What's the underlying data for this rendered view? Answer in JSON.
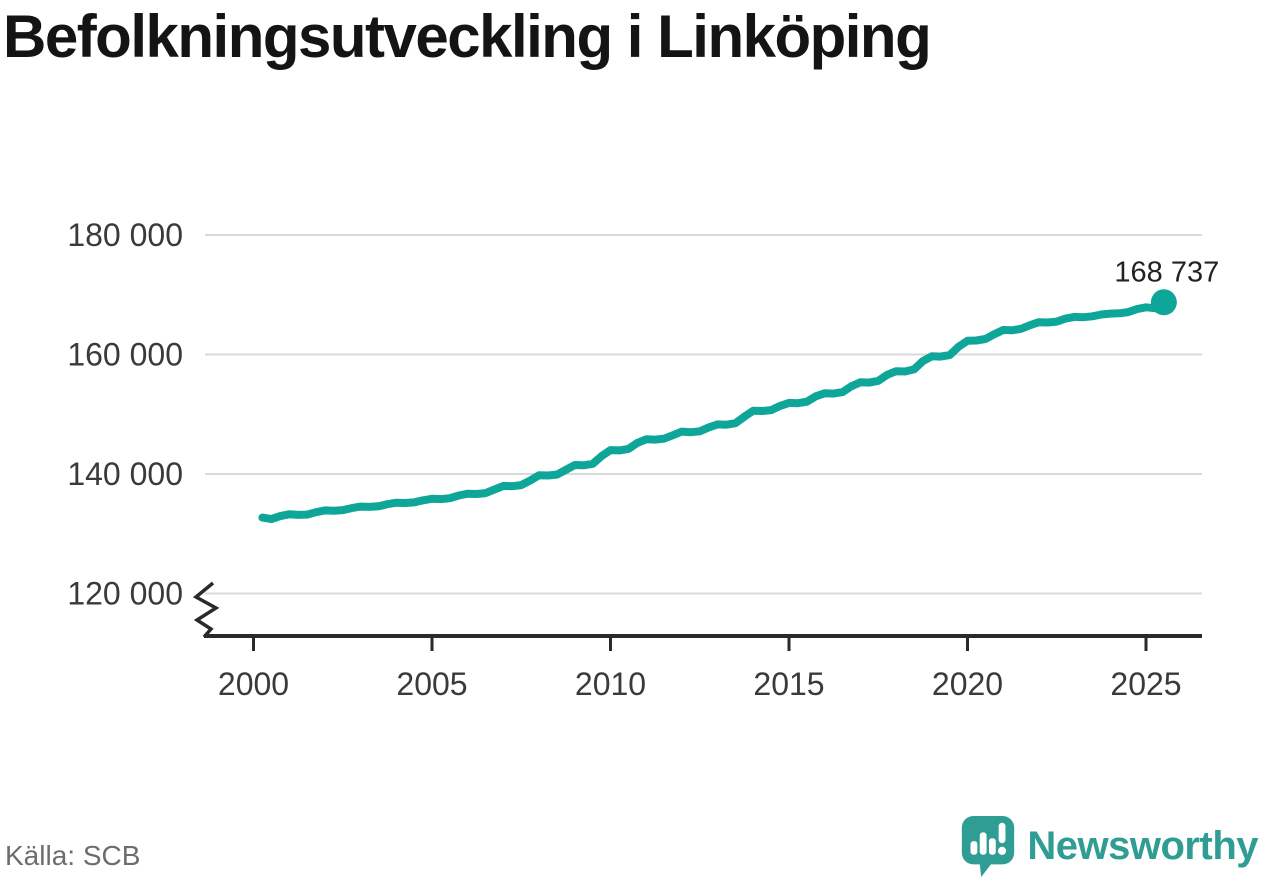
{
  "title": "Befolkningsutveckling i Linköping",
  "source": "Källa: SCB",
  "branding": {
    "name": "Newsworthy"
  },
  "colors": {
    "line": "#0fa69a",
    "brand": "#2f9d93",
    "grid": "#dadada",
    "axis": "#2a2a2a",
    "tick_text": "#3a3a3a",
    "title_text": "#141414",
    "source_text": "#6d6d6d",
    "end_label_text": "#222222"
  },
  "chart_data": {
    "type": "line",
    "title": "Befolkningsutveckling i Linköping",
    "xlabel": "",
    "ylabel": "",
    "unit": "inhabitants",
    "frequency": "quarterly",
    "legend": "none",
    "grid": "horizontal",
    "axis_break": true,
    "xlim": [
      1998.6,
      2026.6
    ],
    "ylim": [
      120000,
      180000
    ],
    "end_value": 168737,
    "end_label": "168 737",
    "y_ticks": [
      {
        "value": 180000,
        "label": "180 000"
      },
      {
        "value": 160000,
        "label": "160 000"
      },
      {
        "value": 140000,
        "label": "140 000"
      },
      {
        "value": 120000,
        "label": "120 000"
      }
    ],
    "x_ticks": [
      {
        "value": 2000,
        "label": "2000"
      },
      {
        "value": 2005,
        "label": "2005"
      },
      {
        "value": 2010,
        "label": "2010"
      },
      {
        "value": 2015,
        "label": "2015"
      },
      {
        "value": 2020,
        "label": "2020"
      },
      {
        "value": 2025,
        "label": "2025"
      }
    ],
    "x": [
      2000.25,
      2000.5,
      2000.75,
      2001,
      2001.25,
      2001.5,
      2001.75,
      2002,
      2002.25,
      2002.5,
      2002.75,
      2003,
      2003.25,
      2003.5,
      2003.75,
      2004,
      2004.25,
      2004.5,
      2004.75,
      2005,
      2005.25,
      2005.5,
      2005.75,
      2006,
      2006.25,
      2006.5,
      2006.75,
      2007,
      2007.25,
      2007.5,
      2007.75,
      2008,
      2008.25,
      2008.5,
      2008.75,
      2009,
      2009.25,
      2009.5,
      2009.75,
      2010,
      2010.25,
      2010.5,
      2010.75,
      2011,
      2011.25,
      2011.5,
      2011.75,
      2012,
      2012.25,
      2012.5,
      2012.75,
      2013,
      2013.25,
      2013.5,
      2013.75,
      2014,
      2014.25,
      2014.5,
      2014.75,
      2015,
      2015.25,
      2015.5,
      2015.75,
      2016,
      2016.25,
      2016.5,
      2016.75,
      2017,
      2017.25,
      2017.5,
      2017.75,
      2018,
      2018.25,
      2018.5,
      2018.75,
      2019,
      2019.25,
      2019.5,
      2019.75,
      2020,
      2020.25,
      2020.5,
      2020.75,
      2021,
      2021.25,
      2021.5,
      2021.75,
      2022,
      2022.25,
      2022.5,
      2022.75,
      2023,
      2023.25,
      2023.5,
      2023.75,
      2024,
      2024.25,
      2024.5,
      2024.75,
      2025,
      2025.25,
      2025.5
    ],
    "values": [
      132700,
      132450,
      132950,
      133250,
      133150,
      133200,
      133600,
      133900,
      133850,
      133950,
      134300,
      134550,
      134500,
      134600,
      134950,
      135200,
      135150,
      135250,
      135600,
      135850,
      135800,
      135950,
      136400,
      136700,
      136650,
      136800,
      137400,
      138000,
      137950,
      138150,
      138900,
      139800,
      139750,
      139900,
      140700,
      141500,
      141450,
      141700,
      143000,
      144000,
      143950,
      144200,
      145200,
      145800,
      145750,
      145900,
      146500,
      147100,
      147000,
      147150,
      147800,
      148300,
      148250,
      148500,
      149600,
      150600,
      150550,
      150700,
      151400,
      151900,
      151850,
      152100,
      153000,
      153500,
      153450,
      153700,
      154700,
      155350,
      155300,
      155600,
      156600,
      157200,
      157150,
      157500,
      158900,
      159700,
      159650,
      159900,
      161300,
      162300,
      162350,
      162600,
      163400,
      164100,
      164050,
      164300,
      164900,
      165400,
      165350,
      165500,
      166000,
      166300,
      166250,
      166400,
      166700,
      166850,
      166900,
      167100,
      167600,
      167900,
      167750,
      168737
    ]
  }
}
